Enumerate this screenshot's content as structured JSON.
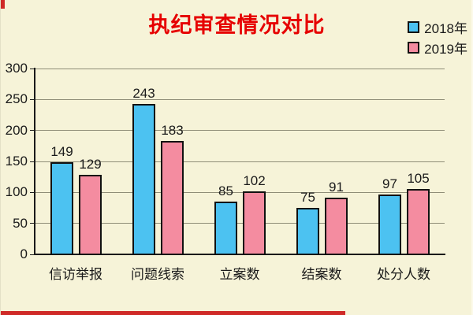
{
  "title": {
    "text": "执纪审查情况对比",
    "color": "#e60000"
  },
  "chart_data": {
    "type": "bar",
    "title": "执纪审查情况对比",
    "categories": [
      "信访举报",
      "问题线索",
      "立案数",
      "结案数",
      "处分人数"
    ],
    "series": [
      {
        "name": "2018年",
        "color": "#4cc2f1",
        "values": [
          149,
          243,
          85,
          75,
          97
        ]
      },
      {
        "name": "2019年",
        "color": "#f48ca0",
        "values": [
          129,
          183,
          102,
          91,
          105
        ]
      }
    ],
    "ylim": [
      0,
      300
    ],
    "ytick_step": 50,
    "ytick_labels": [
      "0",
      "50",
      "100",
      "150",
      "200",
      "250",
      "300"
    ],
    "grid": true,
    "data_labels": true,
    "legend_position": "top-right",
    "bar_outline": "#111111"
  },
  "colors": {
    "background": "#f6f3d8",
    "grid": "#8f8d77",
    "axis": "#1a1a1a",
    "text": "#1a1a1a",
    "title_red": "#e60000",
    "accent_strip": "#cf2a27"
  }
}
